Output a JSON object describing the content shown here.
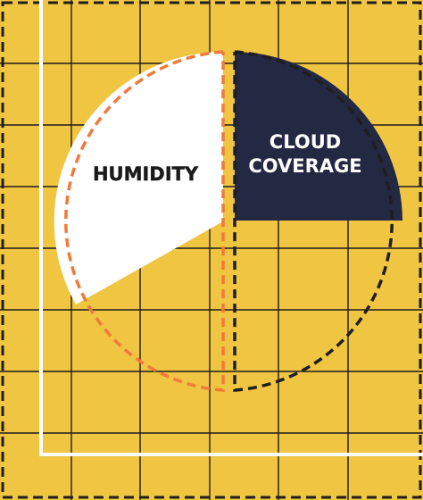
{
  "diagram": {
    "left_segment": {
      "label": "HUMIDITY"
    },
    "right_segment": {
      "label_line1": "CLOUD",
      "label_line2": "COVERAGE"
    }
  },
  "colors": {
    "background": "#f0c541",
    "grid": "#1c1c1c",
    "white": "#ffffff",
    "navy": "#232843",
    "orange_dash": "#f07a3c",
    "dark_dash": "#1e1e1e"
  }
}
